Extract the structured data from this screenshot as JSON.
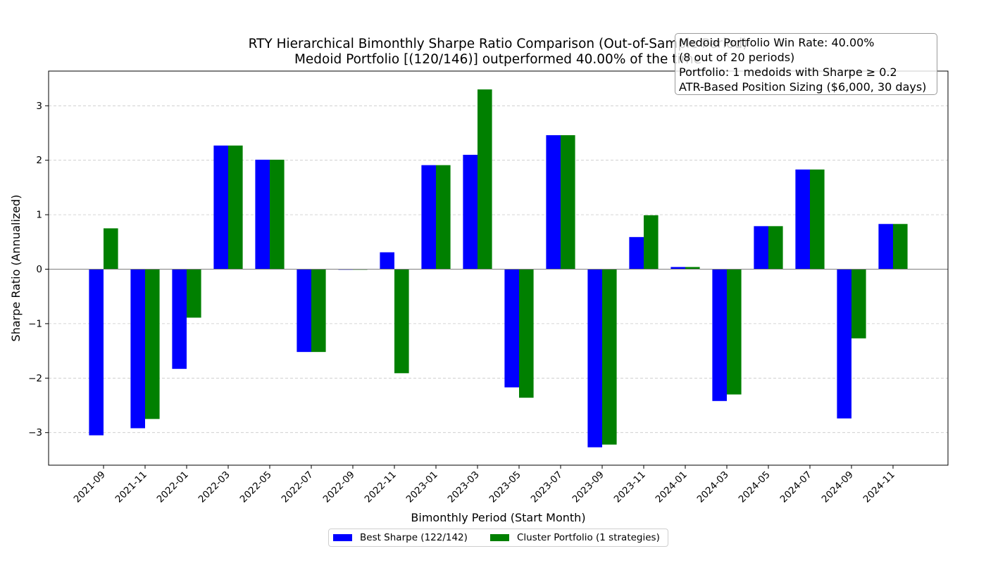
{
  "title_line1": "RTY Hierarchical Bimonthly Sharpe Ratio Comparison (Out-of-Sample Period)",
  "title_line2": "Medoid Portfolio [(120/146)] outperformed 40.00% of the time",
  "info_box": {
    "line1": "Medoid Portfolio Win Rate: 40.00%",
    "line2": "(8 out of 20 periods)",
    "line3": "Portfolio: 1 medoids with Sharpe ≥ 0.2",
    "line4": "ATR-Based Position Sizing ($6,000, 30 days)"
  },
  "legend": {
    "best": "Best Sharpe (122/142)",
    "cluster": "Cluster Portfolio (1 strategies)"
  },
  "colors": {
    "best": "#0000ff",
    "cluster": "#008000",
    "grid": "#c8c8c8"
  },
  "chart_data": {
    "type": "bar",
    "xlabel": "Bimonthly Period (Start Month)",
    "ylabel": "Sharpe Ratio (Annualized)",
    "ylim": [
      -3.6,
      3.6
    ],
    "yticks": [
      -3,
      -2,
      -1,
      0,
      1,
      2,
      3
    ],
    "ytick_labels": [
      "−3",
      "−2",
      "−1",
      "0",
      "1",
      "2",
      "3"
    ],
    "grid": "y-dashed",
    "legend_position": "bottom-center",
    "categories": [
      "2021-09",
      "2021-11",
      "2022-01",
      "2022-03",
      "2022-05",
      "2022-07",
      "2022-09",
      "2022-11",
      "2023-01",
      "2023-03",
      "2023-05",
      "2023-07",
      "2023-09",
      "2023-11",
      "2024-01",
      "2024-03",
      "2024-05",
      "2024-07",
      "2024-09",
      "2024-11"
    ],
    "series": [
      {
        "name": "Best Sharpe (122/142)",
        "values": [
          -3.05,
          -2.92,
          -1.83,
          2.27,
          2.01,
          -1.52,
          -0.01,
          0.31,
          1.91,
          2.1,
          -2.17,
          2.46,
          -3.27,
          0.59,
          0.04,
          -2.42,
          0.79,
          1.83,
          -2.74,
          0.83
        ]
      },
      {
        "name": "Cluster Portfolio (1 strategies)",
        "values": [
          0.75,
          -2.75,
          -0.89,
          2.27,
          2.01,
          -1.52,
          -0.01,
          -1.91,
          1.91,
          3.3,
          -2.36,
          2.46,
          -3.22,
          0.99,
          0.04,
          -2.3,
          0.79,
          1.83,
          -1.27,
          0.83
        ]
      }
    ]
  }
}
